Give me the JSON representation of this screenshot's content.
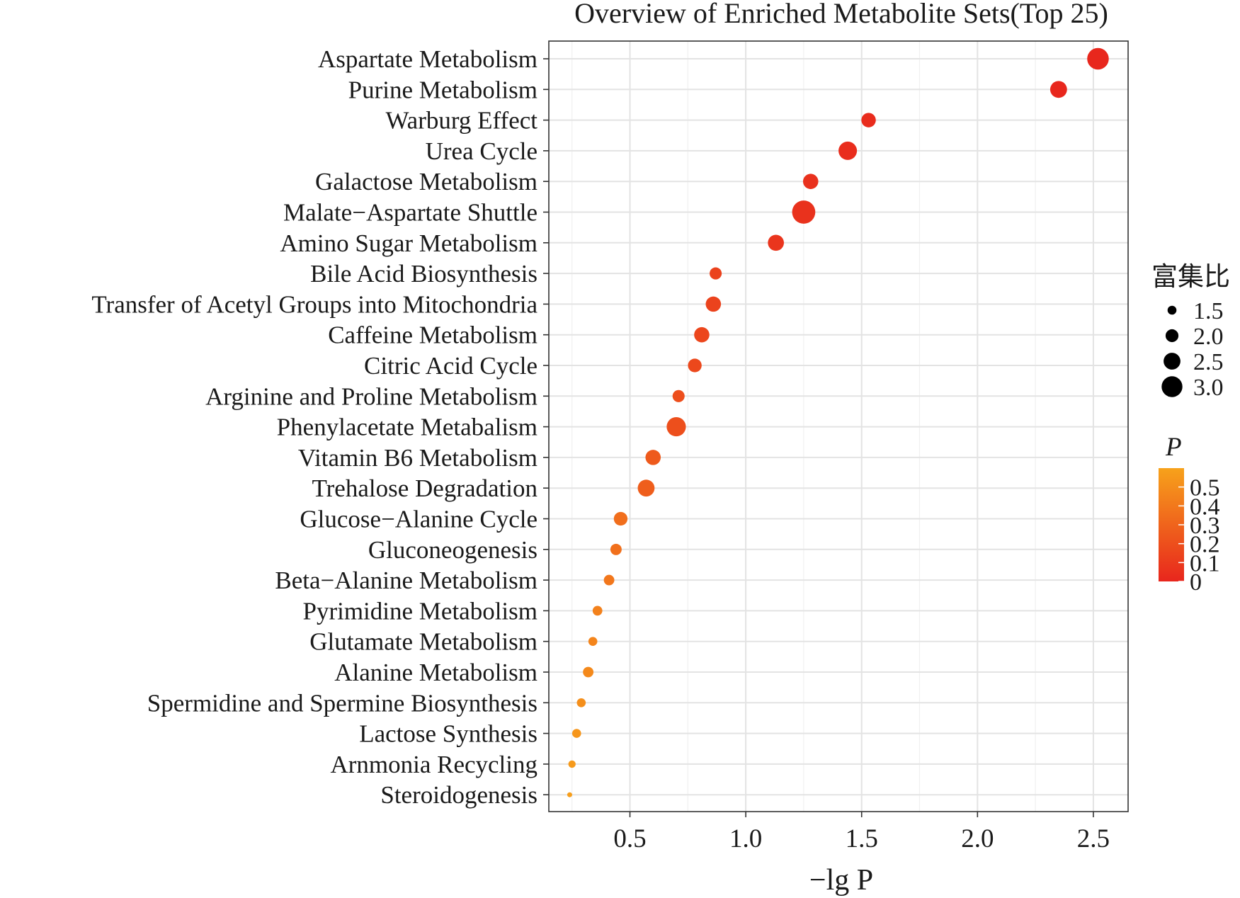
{
  "chart_data": {
    "type": "scatter",
    "title": "Overview of Enriched Metabolite Sets(Top 25)",
    "xlabel": "−lg P",
    "ylabel": "",
    "xlim": [
      0.15,
      2.65
    ],
    "xticks": [
      "0.5",
      "1.0",
      "1.5",
      "2.0",
      "2.5"
    ],
    "xtick_values": [
      0.5,
      1.0,
      1.5,
      2.0,
      2.5
    ],
    "grid": true,
    "legend_position": "right",
    "size_legend": {
      "title": "富集比",
      "values": [
        "1.5",
        "2.0",
        "2.5",
        "3.0"
      ]
    },
    "color_legend": {
      "title": "P",
      "ticks": [
        "0.5",
        "0.4",
        "0.3",
        "0.2",
        "0.1",
        "0"
      ],
      "colors": [
        "#e8261d",
        "#f7a21b"
      ]
    },
    "points": [
      {
        "label": "Aspartate Metabolism",
        "x": 2.52,
        "ratio": 3.1,
        "p": 0.003
      },
      {
        "label": "Purine Metabolism",
        "x": 2.35,
        "ratio": 2.5,
        "p": 0.004
      },
      {
        "label": "Warburg Effect",
        "x": 1.53,
        "ratio": 2.2,
        "p": 0.03
      },
      {
        "label": "Urea Cycle",
        "x": 1.44,
        "ratio": 2.7,
        "p": 0.036
      },
      {
        "label": "Galactose Metabolism",
        "x": 1.28,
        "ratio": 2.3,
        "p": 0.052
      },
      {
        "label": "Malate−Aspartate Shuttle",
        "x": 1.25,
        "ratio": 3.3,
        "p": 0.056
      },
      {
        "label": "Amino Sugar Metabolism",
        "x": 1.13,
        "ratio": 2.4,
        "p": 0.074
      },
      {
        "label": "Bile Acid Biosynthesis",
        "x": 0.87,
        "ratio": 1.9,
        "p": 0.135
      },
      {
        "label": "Transfer of Acetyl Groups into Mitochondria",
        "x": 0.86,
        "ratio": 2.3,
        "p": 0.138
      },
      {
        "label": "Caffeine Metabolism",
        "x": 0.81,
        "ratio": 2.3,
        "p": 0.155
      },
      {
        "label": "Citric Acid Cycle",
        "x": 0.78,
        "ratio": 2.1,
        "p": 0.166
      },
      {
        "label": "Arginine and Proline Metabolism",
        "x": 0.71,
        "ratio": 1.9,
        "p": 0.195
      },
      {
        "label": "Phenylacetate Metabalism",
        "x": 0.7,
        "ratio": 2.8,
        "p": 0.2
      },
      {
        "label": "Vitamin B6 Metabolism",
        "x": 0.6,
        "ratio": 2.3,
        "p": 0.25
      },
      {
        "label": "Trehalose Degradation",
        "x": 0.57,
        "ratio": 2.5,
        "p": 0.27
      },
      {
        "label": "Glucose−Alanine Cycle",
        "x": 0.46,
        "ratio": 2.1,
        "p": 0.35
      },
      {
        "label": "Gluconeogenesis",
        "x": 0.44,
        "ratio": 1.8,
        "p": 0.36
      },
      {
        "label": "Beta−Alanine Metabolism",
        "x": 0.41,
        "ratio": 1.7,
        "p": 0.39
      },
      {
        "label": "Pyrimidine Metabolism",
        "x": 0.36,
        "ratio": 1.6,
        "p": 0.44
      },
      {
        "label": "Glutamate Metabolism",
        "x": 0.34,
        "ratio": 1.5,
        "p": 0.46
      },
      {
        "label": "Alanine Metabolism",
        "x": 0.32,
        "ratio": 1.7,
        "p": 0.48
      },
      {
        "label": "Spermidine and Spermine Biosynthesis",
        "x": 0.29,
        "ratio": 1.5,
        "p": 0.51
      },
      {
        "label": "Lactose Synthesis",
        "x": 0.27,
        "ratio": 1.5,
        "p": 0.54
      },
      {
        "label": "Arnmonia Recycling",
        "x": 0.25,
        "ratio": 1.3,
        "p": 0.56
      },
      {
        "label": "Steroidogenesis",
        "x": 0.24,
        "ratio": 1.0,
        "p": 0.58
      }
    ]
  }
}
